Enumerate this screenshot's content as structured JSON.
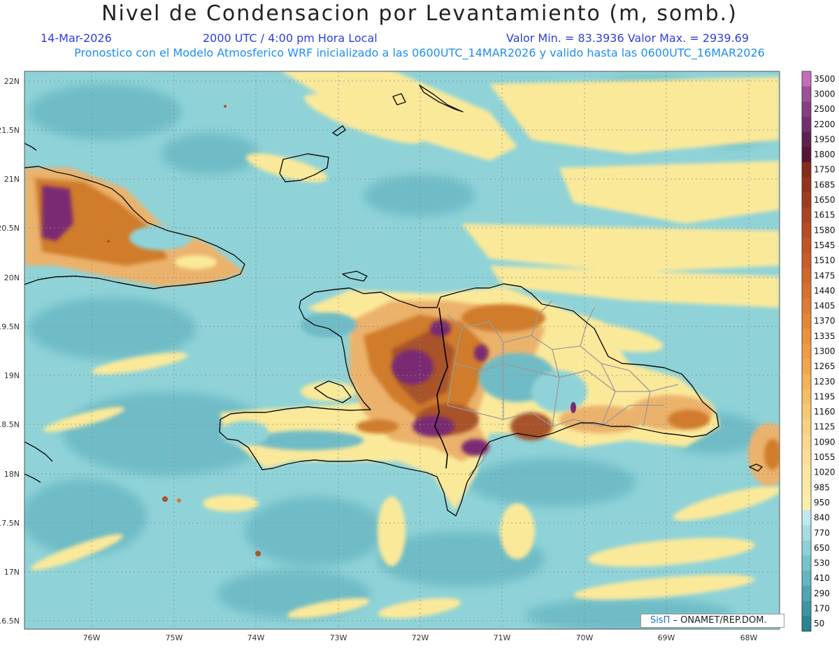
{
  "header": {
    "title": "Nivel de Condensacion por Levantamiento (m, somb.)",
    "date": "14-Mar-2026",
    "time": "2000 UTC / 4:00 pm Hora Local",
    "minmax": "Valor Min. = 83.3936   Valor Max. = 2939.69",
    "forecast": "Pronostico con el Modelo Atmosferico WRF inicializado a las 0600UTC_14MAR2026 y valido hasta las  0600UTC_16MAR2026"
  },
  "map": {
    "lat_labels": [
      "22N",
      "21.5N",
      "21N",
      "20.5N",
      "20N",
      "19.5N",
      "19N",
      "18.5N",
      "18N",
      "17.5N",
      "17N",
      "16.5N"
    ],
    "lon_labels": [
      "76W",
      "75W",
      "74W",
      "73W",
      "72W",
      "71W",
      "70W",
      "69W",
      "68W"
    ],
    "colors": {
      "ocean": "#8fd3d8",
      "low": "#6fbcc6",
      "yellow": "#fbe99a",
      "tan": "#ebb26c",
      "orange": "#d07b2c",
      "brown": "#a8532a",
      "purple": "#7a2a72",
      "border": "#111111",
      "province": "#9a9a9a"
    }
  },
  "colorbar": {
    "labels": [
      "3500",
      "3000",
      "2500",
      "2200",
      "1950",
      "1800",
      "1750",
      "1685",
      "1650",
      "1615",
      "1580",
      "1545",
      "1510",
      "1475",
      "1440",
      "1405",
      "1370",
      "1335",
      "1300",
      "1265",
      "1230",
      "1195",
      "1160",
      "1125",
      "1090",
      "1055",
      "1020",
      "985",
      "950",
      "840",
      "770",
      "650",
      "530",
      "410",
      "290",
      "170",
      "50"
    ],
    "colors": [
      "#c46cbb",
      "#9c4f99",
      "#863e80",
      "#74306c",
      "#5e2250",
      "#571535",
      "#852c1c",
      "#93341e",
      "#9f3c20",
      "#ab4422",
      "#b64c24",
      "#c05426",
      "#c85d29",
      "#d0672c",
      "#d87130",
      "#df7b34",
      "#e48638",
      "#e9913e",
      "#ed9c45",
      "#f0a74d",
      "#f2b259",
      "#f4bd66",
      "#f6c774",
      "#f7d082",
      "#f8d88f",
      "#f9df99",
      "#fae5a2",
      "#fbe9a7",
      "#fcedad",
      "#bfe8ec",
      "#a6dde3",
      "#8cd0d8",
      "#77c3cc",
      "#63b5c0",
      "#4fa5b1",
      "#3b94a2",
      "#2a8292"
    ]
  },
  "credit": {
    "logo": "SisΠ",
    "text": " – ONAMET/REP.DOM."
  }
}
